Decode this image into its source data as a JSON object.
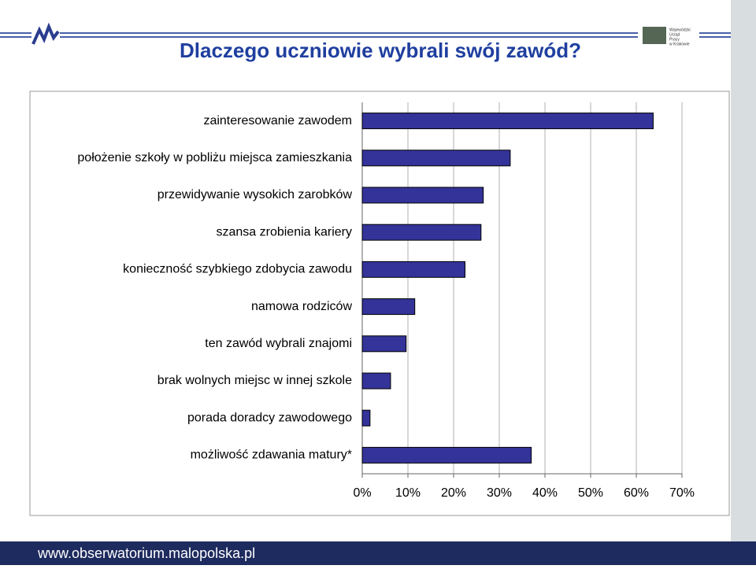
{
  "header": {
    "title": "Dlaczego uczniowie wybrali swój zawód?",
    "logo_text": [
      "Wojewódzki",
      "Urząd",
      "Pracy",
      "w Krakowie"
    ]
  },
  "chart_data": {
    "type": "hbar",
    "categories": [
      "zainteresowanie zawodem",
      "położenie szkoły w pobliżu miejsca zamieszkania",
      "przewidywanie wysokich zarobków",
      "szansa zrobienia kariery",
      "konieczność szybkiego zdobycia zawodu",
      "namowa rodziców",
      "ten zawód wybrali znajomi",
      "brak wolnych miejsc w innej szkole",
      "porada doradcy zawodowego",
      "możliwość zdawania matury*"
    ],
    "values": [
      63.7,
      32.4,
      26.5,
      26,
      22.5,
      11.5,
      9.6,
      6.2,
      1.7,
      37
    ],
    "color": "#333399",
    "xlim": [
      0,
      70
    ],
    "xticks": [
      {
        "value": 0,
        "label": "0%"
      },
      {
        "value": 10,
        "label": "10%"
      },
      {
        "value": 20,
        "label": "20%"
      },
      {
        "value": 30,
        "label": "30%"
      },
      {
        "value": 40,
        "label": "40%"
      },
      {
        "value": 50,
        "label": "50%"
      },
      {
        "value": 60,
        "label": "60%"
      },
      {
        "value": 70,
        "label": "70%"
      }
    ],
    "grid": true
  },
  "footer": {
    "url": "www.obserwatorium.malopolska.pl"
  }
}
